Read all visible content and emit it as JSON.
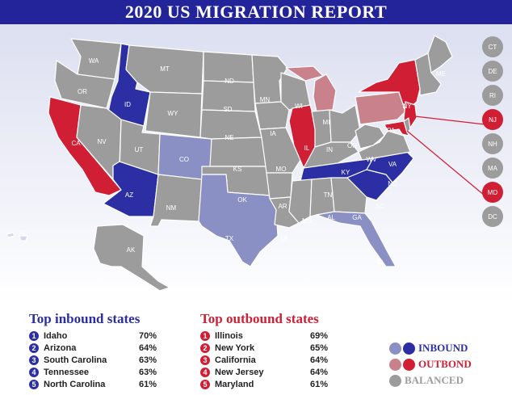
{
  "title": "2020 US MIGRATION REPORT",
  "colors": {
    "inbound": "#2b2fa3",
    "inbound_light": "#8a8fc4",
    "outbound": "#d01f34",
    "outbound_light": "#c9828c",
    "balanced": "#9c9c9c",
    "banner": "#23239a"
  },
  "map": {
    "labels": {
      "WA": "WA",
      "OR": "OR",
      "CA": "CA",
      "ID": "ID",
      "NV": "NV",
      "MT": "MT",
      "WY": "WY",
      "UT": "UT",
      "AZ": "AZ",
      "CO": "CO",
      "NM": "NM",
      "ND": "ND",
      "SD": "SD",
      "NE": "NE",
      "KS": "KS",
      "OK": "OK",
      "TX": "TX",
      "MN": "MN",
      "IA": "IA",
      "MO": "MO",
      "AR": "AR",
      "LA": "LA",
      "WI": "WI",
      "IL": "IL",
      "MI": "MI",
      "IN": "IN",
      "OH": "OH",
      "KY": "KY",
      "TN": "TN",
      "MS": "MS",
      "AL": "AL",
      "GA": "GA",
      "FL": "FL",
      "SC": "SC",
      "NC": "NC",
      "VA": "VA",
      "WV": "WV",
      "PA": "PA",
      "NY": "NY",
      "ME": "ME",
      "AK": "AK",
      "HI": "HI"
    },
    "small_states": [
      "CT",
      "DE",
      "RI",
      "NJ",
      "NH",
      "MA",
      "MD",
      "DC"
    ]
  },
  "inbound": {
    "title": "Top inbound states",
    "items": [
      {
        "rank": "1",
        "state": "Idaho",
        "pct": "70%"
      },
      {
        "rank": "2",
        "state": "Arizona",
        "pct": "64%"
      },
      {
        "rank": "3",
        "state": "South Carolina",
        "pct": "63%"
      },
      {
        "rank": "4",
        "state": "Tennessee",
        "pct": "63%"
      },
      {
        "rank": "5",
        "state": "North Carolina",
        "pct": "61%"
      }
    ]
  },
  "outbound": {
    "title": "Top outbound states",
    "items": [
      {
        "rank": "1",
        "state": "Illinois",
        "pct": "69%"
      },
      {
        "rank": "2",
        "state": "New York",
        "pct": "65%"
      },
      {
        "rank": "3",
        "state": "California",
        "pct": "64%"
      },
      {
        "rank": "4",
        "state": "New Jersey",
        "pct": "64%"
      },
      {
        "rank": "5",
        "state": "Maryland",
        "pct": "61%"
      }
    ]
  },
  "legend": {
    "inbound": "INBOUND",
    "outbound": "OUTBOND",
    "balanced": "BALANCED"
  }
}
